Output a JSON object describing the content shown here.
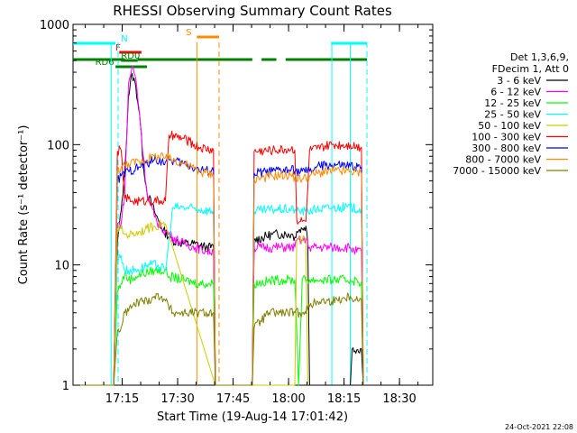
{
  "chart_data": {
    "type": "line",
    "title": "RHESSI Observing Summary Count Rates",
    "xlabel": "Start Time (19-Aug-14 17:01:42)",
    "ylabel": "Count Rate (s⁻¹ detector⁻¹)",
    "yscale": "log",
    "ylim": [
      1,
      1000
    ],
    "xlim": [
      "17:01:42",
      "18:39:00"
    ],
    "x_ticks": [
      "17:15",
      "17:30",
      "17:45",
      "18:00",
      "18:15",
      "18:30"
    ],
    "y_ticks": [
      "1",
      "10",
      "100",
      "1000"
    ],
    "timestamp": "24-Oct-2021 22:08",
    "legend": {
      "placement": "right",
      "header": [
        "Det 1,3,6,9,",
        "FDecim 1, Att 0"
      ]
    },
    "series": [
      {
        "name": "3 - 6 keV",
        "color": "#000000",
        "points": [
          [
            0,
            0
          ],
          [
            11,
            0
          ],
          [
            12,
            15
          ],
          [
            13,
            28
          ],
          [
            14,
            60
          ],
          [
            15,
            250
          ],
          [
            16,
            390
          ],
          [
            17,
            300
          ],
          [
            18,
            180
          ],
          [
            19,
            70
          ],
          [
            20,
            40
          ],
          [
            22,
            28
          ],
          [
            24,
            20
          ],
          [
            27,
            16
          ],
          [
            30,
            15
          ],
          [
            33,
            15
          ],
          [
            36,
            14
          ],
          [
            38,
            14
          ],
          [
            38.5,
            0
          ],
          [
            48.5,
            0
          ],
          [
            49,
            16
          ],
          [
            54,
            18
          ],
          [
            59,
            18
          ],
          [
            60,
            17
          ],
          [
            60.5,
            19
          ],
          [
            62,
            20
          ],
          [
            63,
            21
          ],
          [
            63.5,
            15
          ],
          [
            64,
            0
          ],
          [
            75,
            0
          ],
          [
            75.5,
            2
          ],
          [
            78,
            2
          ],
          [
            78.5,
            0
          ]
        ]
      },
      {
        "name": "6 - 12 keV",
        "color": "#ff00ff",
        "points": [
          [
            0,
            0
          ],
          [
            11,
            0
          ],
          [
            12,
            22
          ],
          [
            13,
            22
          ],
          [
            14,
            40
          ],
          [
            15,
            320
          ],
          [
            16,
            450
          ],
          [
            17,
            350
          ],
          [
            18,
            180
          ],
          [
            19,
            80
          ],
          [
            20,
            40
          ],
          [
            22,
            25
          ],
          [
            24,
            20
          ],
          [
            27,
            17
          ],
          [
            30,
            15
          ],
          [
            33,
            14
          ],
          [
            36,
            13
          ],
          [
            38,
            13
          ],
          [
            38.5,
            0
          ],
          [
            48.5,
            0
          ],
          [
            49,
            14
          ],
          [
            54,
            14
          ],
          [
            59,
            14
          ],
          [
            60,
            14
          ],
          [
            60.5,
            16
          ],
          [
            62,
            16
          ],
          [
            63,
            16
          ],
          [
            63.5,
            15
          ],
          [
            64,
            14
          ],
          [
            70,
            14
          ],
          [
            75,
            14
          ],
          [
            76,
            13
          ],
          [
            78,
            13
          ],
          [
            78.5,
            0
          ]
        ]
      },
      {
        "name": "12 - 25 keV",
        "color": "#00ff00",
        "points": [
          [
            0,
            0
          ],
          [
            11,
            0
          ],
          [
            12,
            6
          ],
          [
            13,
            7
          ],
          [
            14,
            8.5
          ],
          [
            15,
            7.5
          ],
          [
            17,
            8
          ],
          [
            19,
            8.5
          ],
          [
            22,
            9
          ],
          [
            25,
            9
          ],
          [
            26,
            8
          ],
          [
            30,
            7.5
          ],
          [
            34,
            7
          ],
          [
            38,
            7
          ],
          [
            38.5,
            0
          ],
          [
            48.5,
            0
          ],
          [
            49,
            7
          ],
          [
            55,
            7.5
          ],
          [
            60,
            7.5
          ],
          [
            60.5,
            3
          ],
          [
            61,
            1
          ],
          [
            62,
            7.5
          ],
          [
            66,
            7.5
          ],
          [
            70,
            7.5
          ],
          [
            75,
            7.5
          ],
          [
            78,
            7.2
          ],
          [
            78.5,
            0
          ]
        ]
      },
      {
        "name": "25 - 50 keV",
        "color": "#00ffff",
        "points": [
          [
            0,
            0
          ],
          [
            11,
            0
          ],
          [
            12,
            11
          ],
          [
            13,
            12
          ],
          [
            14,
            9
          ],
          [
            15,
            9
          ],
          [
            17,
            9
          ],
          [
            20,
            10
          ],
          [
            23,
            10
          ],
          [
            25,
            9
          ],
          [
            27,
            30
          ],
          [
            30,
            30
          ],
          [
            34,
            29
          ],
          [
            38,
            28
          ],
          [
            38.5,
            0
          ],
          [
            48.5,
            0
          ],
          [
            49,
            28
          ],
          [
            55,
            29
          ],
          [
            60,
            29
          ],
          [
            60.5,
            28
          ],
          [
            63,
            28
          ],
          [
            66,
            29
          ],
          [
            70,
            30
          ],
          [
            75,
            30
          ],
          [
            78,
            29
          ],
          [
            78.5,
            0
          ]
        ]
      },
      {
        "name": "50 - 100 keV",
        "color": "#cccc00",
        "points": [
          [
            0,
            0
          ],
          [
            11,
            0
          ],
          [
            12,
            20
          ],
          [
            13,
            20
          ],
          [
            14,
            18
          ],
          [
            16,
            18
          ],
          [
            18,
            19
          ],
          [
            20,
            20
          ],
          [
            22,
            21
          ],
          [
            24,
            22
          ],
          [
            25,
            22
          ],
          [
            38.5,
            0
          ],
          [
            48.5,
            0
          ],
          [
            60,
            0
          ],
          [
            60.5,
            16
          ],
          [
            62,
            16
          ],
          [
            63,
            16
          ],
          [
            63.5,
            0
          ]
        ]
      },
      {
        "name": "100 - 300 keV",
        "color": "#ff0000",
        "points": [
          [
            0,
            0
          ],
          [
            11,
            0
          ],
          [
            12,
            88
          ],
          [
            13,
            90
          ],
          [
            14,
            36
          ],
          [
            16,
            34
          ],
          [
            18,
            34
          ],
          [
            20,
            34
          ],
          [
            22,
            34
          ],
          [
            24,
            34
          ],
          [
            25,
            34
          ],
          [
            26,
            120
          ],
          [
            30,
            112
          ],
          [
            34,
            95
          ],
          [
            38,
            90
          ],
          [
            38.5,
            0
          ],
          [
            48.5,
            0
          ],
          [
            49,
            88
          ],
          [
            54,
            90
          ],
          [
            59,
            92
          ],
          [
            60,
            90
          ],
          [
            60.5,
            24
          ],
          [
            62,
            23
          ],
          [
            63,
            23
          ],
          [
            64,
            90
          ],
          [
            66,
            92
          ],
          [
            70,
            100
          ],
          [
            75,
            100
          ],
          [
            78,
            95
          ],
          [
            78.5,
            0
          ]
        ]
      },
      {
        "name": "300 - 800 keV",
        "color": "#0000ff",
        "points": [
          [
            0,
            0
          ],
          [
            11,
            0
          ],
          [
            12,
            50
          ],
          [
            13,
            55
          ],
          [
            15,
            60
          ],
          [
            18,
            65
          ],
          [
            22,
            75
          ],
          [
            25,
            72
          ],
          [
            26,
            75
          ],
          [
            30,
            70
          ],
          [
            34,
            62
          ],
          [
            38,
            60
          ],
          [
            38.5,
            0
          ],
          [
            48.5,
            0
          ],
          [
            49,
            58
          ],
          [
            54,
            60
          ],
          [
            59,
            62
          ],
          [
            60,
            60
          ],
          [
            62,
            60
          ],
          [
            64,
            60
          ],
          [
            66,
            66
          ],
          [
            70,
            68
          ],
          [
            75,
            66
          ],
          [
            78,
            65
          ],
          [
            78.5,
            0
          ]
        ]
      },
      {
        "name": "800 - 7000 keV",
        "color": "#ff8c00",
        "points": [
          [
            0,
            0
          ],
          [
            11,
            0
          ],
          [
            12,
            60
          ],
          [
            13,
            65
          ],
          [
            15,
            70
          ],
          [
            18,
            72
          ],
          [
            22,
            80
          ],
          [
            25,
            78
          ],
          [
            26,
            77
          ],
          [
            30,
            70
          ],
          [
            34,
            60
          ],
          [
            38,
            56
          ],
          [
            38.5,
            0
          ],
          [
            48.5,
            0
          ],
          [
            49,
            52
          ],
          [
            54,
            55
          ],
          [
            59,
            56
          ],
          [
            60,
            53
          ],
          [
            62,
            52
          ],
          [
            64,
            55
          ],
          [
            66,
            58
          ],
          [
            70,
            60
          ],
          [
            75,
            60
          ],
          [
            78,
            58
          ],
          [
            78.5,
            0
          ]
        ]
      },
      {
        "name": "7000 - 15000 keV",
        "color": "#7f7f00",
        "points": [
          [
            0,
            0
          ],
          [
            11,
            0
          ],
          [
            12,
            2.8
          ],
          [
            13,
            3
          ],
          [
            14,
            4
          ],
          [
            16,
            4.5
          ],
          [
            18,
            5
          ],
          [
            20,
            5
          ],
          [
            22,
            5.5
          ],
          [
            24,
            5.5
          ],
          [
            25,
            5
          ],
          [
            27,
            4
          ],
          [
            30,
            4
          ],
          [
            34,
            4
          ],
          [
            38,
            4
          ],
          [
            38.5,
            0
          ],
          [
            48.5,
            0
          ],
          [
            49,
            3
          ],
          [
            53,
            4
          ],
          [
            57,
            4
          ],
          [
            60,
            4
          ],
          [
            62,
            4
          ],
          [
            64,
            4.5
          ],
          [
            66,
            5
          ],
          [
            70,
            5
          ],
          [
            75,
            5.5
          ],
          [
            78,
            5
          ],
          [
            78.5,
            0
          ]
        ]
      }
    ],
    "flags": [
      {
        "label": "N",
        "color": "#00ffff",
        "segments": [
          [
            0,
            11.5
          ],
          [
            69.8,
            79.5
          ]
        ]
      },
      {
        "label": "F",
        "color": "#ff0000",
        "segments": [
          [
            12.5,
            18.5
          ]
        ]
      },
      {
        "label": "RD0",
        "color": "#008000",
        "segments": [
          [
            13,
            17.5
          ]
        ]
      },
      {
        "label": "",
        "color": "#008000",
        "segments": [
          [
            0,
            14
          ],
          [
            17.5,
            48.5
          ],
          [
            51,
            55
          ],
          [
            57.5,
            79.5
          ]
        ]
      },
      {
        "label": "RD6",
        "color": "#008000",
        "segments": [
          [
            11.5,
            20
          ]
        ]
      },
      {
        "label": "S",
        "color": "#ff8c00",
        "segments": [
          [
            33.5,
            39.5
          ]
        ]
      }
    ],
    "vlines": [
      {
        "x": 12.2,
        "color": "#00ffff",
        "style": "dash"
      },
      {
        "x": 33.5,
        "color": "#ff8c00",
        "style": "solid"
      },
      {
        "x": 39.5,
        "color": "#ff8c00",
        "style": "dash"
      },
      {
        "x": 10.3,
        "color": "#00ffff",
        "style": "solid"
      },
      {
        "x": 70.0,
        "color": "#00ffff",
        "style": "solid"
      },
      {
        "x": 75.0,
        "color": "#00ffff",
        "style": "solid"
      },
      {
        "x": 79.5,
        "color": "#00ffff",
        "style": "dash"
      }
    ]
  }
}
